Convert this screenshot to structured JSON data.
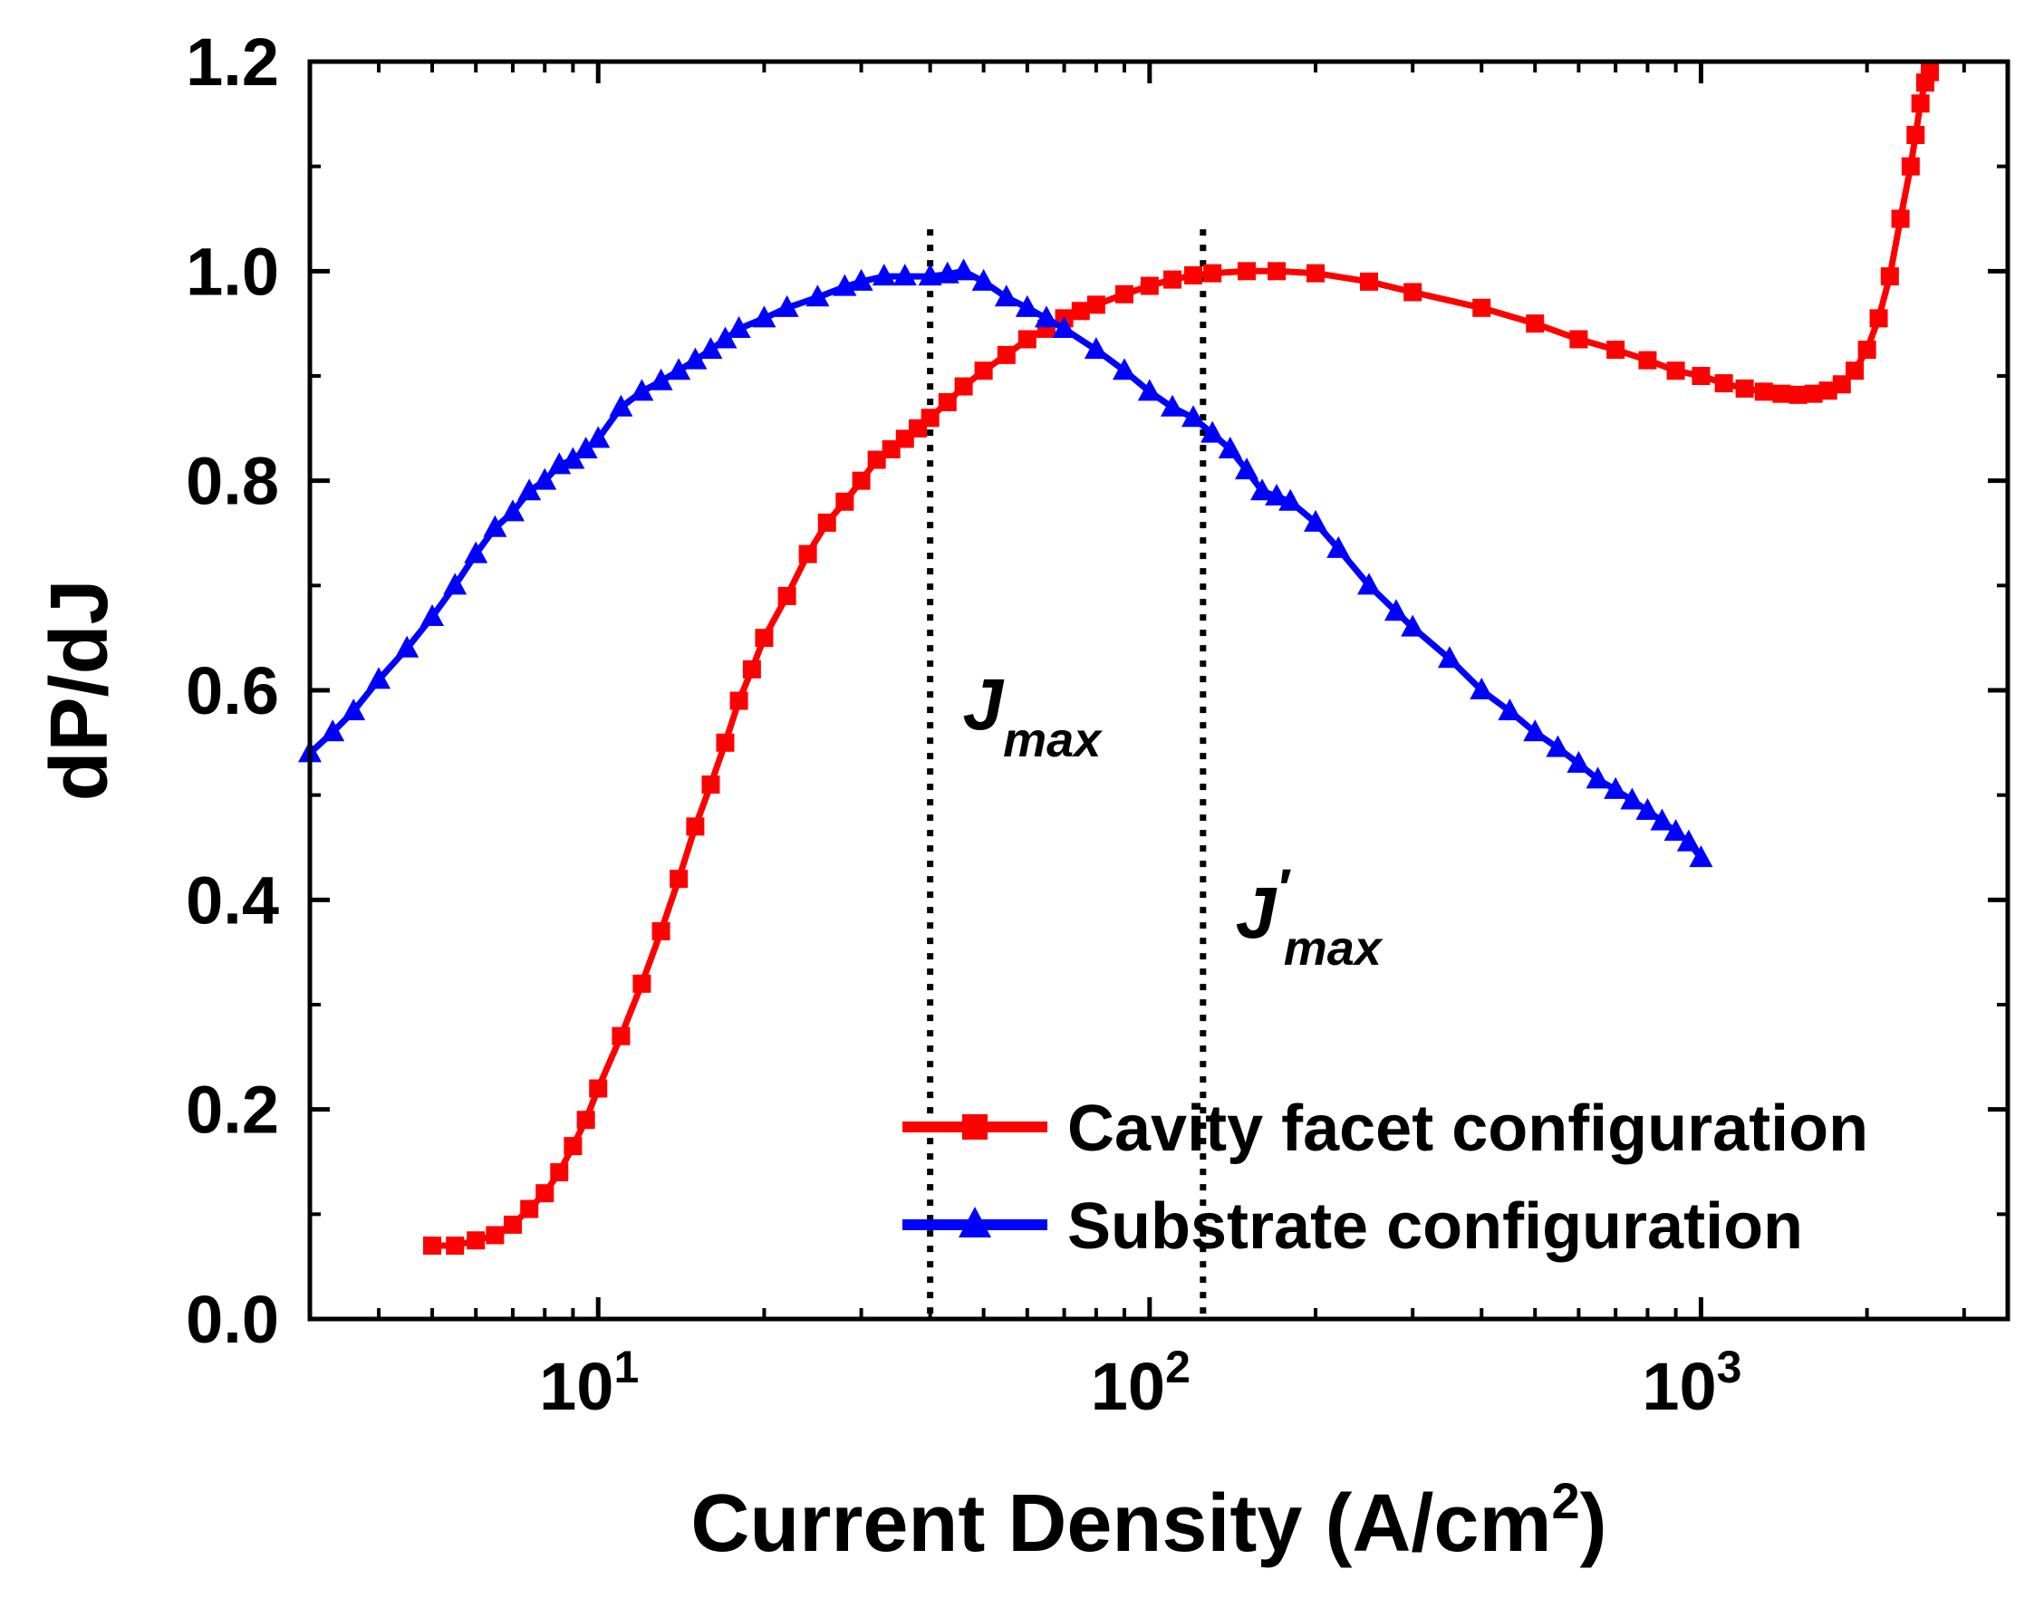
{
  "chart_data": {
    "type": "line",
    "xlabel": "Current Density (A/cm",
    "xlabel_sup": "2",
    "xlabel_close": ")",
    "ylabel": "dP/dJ",
    "xscale": "log",
    "xlim": [
      3,
      3600
    ],
    "ylim": [
      0,
      1.2
    ],
    "y_ticks": [
      {
        "value": 0.0,
        "label": "0.0"
      },
      {
        "value": 0.2,
        "label": "0.2"
      },
      {
        "value": 0.4,
        "label": "0.4"
      },
      {
        "value": 0.6,
        "label": "0.6"
      },
      {
        "value": 0.8,
        "label": "0.8"
      },
      {
        "value": 1.0,
        "label": "1.0"
      },
      {
        "value": 1.2,
        "label": "1.2"
      }
    ],
    "x_ticks": [
      {
        "value": 10,
        "base": "10",
        "exp": "1"
      },
      {
        "value": 100,
        "base": "10",
        "exp": "2"
      },
      {
        "value": 1000,
        "base": "10",
        "exp": "3"
      }
    ],
    "series": [
      {
        "name": "Cavity facet configuration",
        "color": "#ff0000",
        "marker": "square",
        "x": [
          5,
          5.5,
          6,
          6.5,
          7,
          7.5,
          8,
          8.5,
          9,
          9.5,
          10,
          11,
          12,
          13,
          14,
          15,
          16,
          17,
          18,
          19,
          20,
          22,
          24,
          26,
          28,
          30,
          32,
          34,
          36,
          38,
          40,
          43,
          46,
          50,
          55,
          60,
          65,
          70,
          75,
          80,
          90,
          100,
          110,
          120,
          130,
          150,
          170,
          200,
          250,
          300,
          400,
          500,
          600,
          700,
          800,
          900,
          1000,
          1100,
          1200,
          1300,
          1400,
          1500,
          1600,
          1700,
          1800,
          1900,
          2000,
          2100,
          2200,
          2300,
          2400,
          2450,
          2500,
          2550,
          2600
        ],
        "values": [
          0.07,
          0.07,
          0.075,
          0.08,
          0.09,
          0.105,
          0.12,
          0.14,
          0.165,
          0.19,
          0.22,
          0.27,
          0.32,
          0.37,
          0.42,
          0.47,
          0.51,
          0.55,
          0.59,
          0.62,
          0.65,
          0.69,
          0.73,
          0.76,
          0.78,
          0.8,
          0.82,
          0.83,
          0.84,
          0.85,
          0.86,
          0.875,
          0.89,
          0.905,
          0.92,
          0.935,
          0.945,
          0.955,
          0.962,
          0.968,
          0.978,
          0.986,
          0.992,
          0.996,
          0.998,
          1.0,
          1.0,
          0.998,
          0.99,
          0.98,
          0.965,
          0.95,
          0.935,
          0.925,
          0.915,
          0.905,
          0.9,
          0.893,
          0.888,
          0.885,
          0.883,
          0.882,
          0.883,
          0.886,
          0.892,
          0.905,
          0.925,
          0.955,
          0.995,
          1.05,
          1.1,
          1.13,
          1.16,
          1.18,
          1.19
        ]
      },
      {
        "name": "Substrate configuration",
        "color": "#0000ff",
        "marker": "triangle",
        "x": [
          3,
          3.3,
          3.6,
          4,
          4.5,
          5,
          5.5,
          6,
          6.5,
          7,
          7.5,
          8,
          8.5,
          9,
          9.5,
          10,
          11,
          12,
          13,
          14,
          15,
          16,
          17,
          18,
          20,
          22,
          25,
          28,
          30,
          33,
          36,
          40,
          43,
          46,
          50,
          55,
          60,
          65,
          70,
          80,
          90,
          100,
          110,
          120,
          130,
          140,
          150,
          160,
          170,
          180,
          200,
          220,
          250,
          280,
          300,
          350,
          400,
          450,
          500,
          550,
          600,
          650,
          700,
          750,
          800,
          850,
          900,
          950,
          1000
        ],
        "values": [
          0.54,
          0.56,
          0.58,
          0.61,
          0.64,
          0.67,
          0.7,
          0.73,
          0.755,
          0.77,
          0.79,
          0.8,
          0.815,
          0.82,
          0.83,
          0.84,
          0.87,
          0.885,
          0.895,
          0.905,
          0.915,
          0.925,
          0.935,
          0.945,
          0.955,
          0.965,
          0.975,
          0.985,
          0.99,
          0.995,
          0.995,
          0.995,
          0.997,
          1.0,
          0.99,
          0.975,
          0.965,
          0.955,
          0.945,
          0.925,
          0.905,
          0.885,
          0.87,
          0.86,
          0.845,
          0.83,
          0.81,
          0.79,
          0.785,
          0.78,
          0.76,
          0.735,
          0.7,
          0.675,
          0.66,
          0.63,
          0.6,
          0.58,
          0.56,
          0.545,
          0.53,
          0.515,
          0.505,
          0.495,
          0.485,
          0.475,
          0.465,
          0.455,
          0.44
        ]
      }
    ],
    "vlines": [
      {
        "x": 40,
        "label": "J",
        "sub": "max",
        "prime": ""
      },
      {
        "x": 125,
        "label": "J",
        "sub": "max",
        "prime": "′"
      }
    ],
    "legend": {
      "position": "bottom-right"
    }
  }
}
